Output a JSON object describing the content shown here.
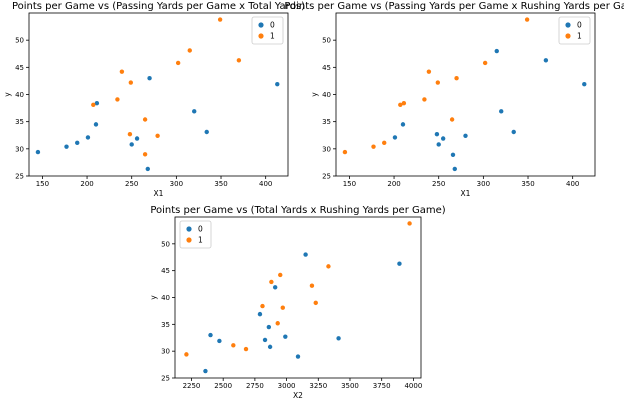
{
  "colors": {
    "class0": "#1f77b4",
    "class1": "#ff7f0e",
    "frame": "#000000",
    "legend_border": "#cccccc"
  },
  "chart_data": [
    {
      "type": "scatter",
      "title": "Points per Game vs (Passing Yards per Game x Total Yards)",
      "xlabel": "X1",
      "ylabel": "y",
      "xlim": [
        135,
        425
      ],
      "ylim": [
        25,
        55
      ],
      "xticks": [
        "150",
        "200",
        "250",
        "300",
        "350",
        "400"
      ],
      "yticks": [
        "25",
        "30",
        "35",
        "40",
        "45",
        "50"
      ],
      "grid": false,
      "legend": {
        "title": "",
        "placement": "top-right",
        "entries": [
          "0",
          "1"
        ]
      },
      "series": [
        {
          "name": "0",
          "points": [
            [
              145,
              29.4
            ],
            [
              177,
              30.4
            ],
            [
              189,
              31.1
            ],
            [
              201,
              32.1
            ],
            [
              210,
              34.5
            ],
            [
              211,
              38.4
            ],
            [
              250,
              30.8
            ],
            [
              256,
              31.9
            ],
            [
              268,
              26.3
            ],
            [
              270,
              43.0
            ],
            [
              320,
              36.9
            ],
            [
              334,
              33.1
            ],
            [
              413,
              41.9
            ]
          ]
        },
        {
          "name": "1",
          "points": [
            [
              207,
              38.1
            ],
            [
              234,
              39.1
            ],
            [
              239,
              44.2
            ],
            [
              248,
              32.7
            ],
            [
              249,
              42.2
            ],
            [
              265,
              35.4
            ],
            [
              265,
              29.0
            ],
            [
              279,
              32.4
            ],
            [
              302,
              45.8
            ],
            [
              315,
              48.1
            ],
            [
              349,
              53.8
            ],
            [
              370,
              46.3
            ]
          ]
        }
      ]
    },
    {
      "type": "scatter",
      "title": "Points per Game vs (Passing Yards per Game x Rushing Yards per Game)",
      "xlabel": "X1",
      "ylabel": "y",
      "xlim": [
        135,
        425
      ],
      "ylim": [
        25,
        55
      ],
      "xticks": [
        "150",
        "200",
        "250",
        "300",
        "350",
        "400"
      ],
      "yticks": [
        "25",
        "30",
        "35",
        "40",
        "45",
        "50"
      ],
      "grid": false,
      "legend": {
        "title": "",
        "placement": "top-right",
        "entries": [
          "0",
          "1"
        ]
      },
      "series": [
        {
          "name": "0",
          "points": [
            [
              201,
              32.1
            ],
            [
              210,
              34.5
            ],
            [
              248,
              32.7
            ],
            [
              250,
              30.8
            ],
            [
              255,
              31.9
            ],
            [
              266,
              28.9
            ],
            [
              268,
              26.3
            ],
            [
              280,
              32.4
            ],
            [
              315,
              48.0
            ],
            [
              320,
              36.9
            ],
            [
              334,
              33.1
            ],
            [
              370,
              46.3
            ],
            [
              413,
              41.9
            ]
          ]
        },
        {
          "name": "1",
          "points": [
            [
              145,
              29.4
            ],
            [
              177,
              30.4
            ],
            [
              189,
              31.1
            ],
            [
              207,
              38.1
            ],
            [
              211,
              38.4
            ],
            [
              234,
              39.1
            ],
            [
              239,
              44.2
            ],
            [
              249,
              42.2
            ],
            [
              265,
              35.4
            ],
            [
              270,
              43.0
            ],
            [
              302,
              45.8
            ],
            [
              349,
              53.8
            ]
          ]
        }
      ]
    },
    {
      "type": "scatter",
      "title": "Points per Game vs (Total Yards x Rushing Yards per Game)",
      "xlabel": "X2",
      "ylabel": "y",
      "xlim": [
        2120,
        4060
      ],
      "ylim": [
        25,
        55
      ],
      "xticks": [
        "2250",
        "2500",
        "2750",
        "3000",
        "3250",
        "3500",
        "3750",
        "4000"
      ],
      "yticks": [
        "25",
        "30",
        "35",
        "40",
        "45",
        "50"
      ],
      "grid": false,
      "legend": {
        "title": "",
        "placement": "top-left",
        "entries": [
          "0",
          "1"
        ]
      },
      "series": [
        {
          "name": "0",
          "points": [
            [
              2360,
              26.3
            ],
            [
              2400,
              33.0
            ],
            [
              2470,
              31.9
            ],
            [
              2790,
              36.9
            ],
            [
              2830,
              32.1
            ],
            [
              2860,
              34.5
            ],
            [
              2870,
              30.8
            ],
            [
              2910,
              41.9
            ],
            [
              2990,
              32.7
            ],
            [
              3090,
              29.0
            ],
            [
              3150,
              48.0
            ],
            [
              3410,
              32.4
            ],
            [
              3890,
              46.3
            ]
          ]
        },
        {
          "name": "1",
          "points": [
            [
              2210,
              29.4
            ],
            [
              2580,
              31.1
            ],
            [
              2680,
              30.4
            ],
            [
              2810,
              38.4
            ],
            [
              2880,
              42.9
            ],
            [
              2930,
              35.2
            ],
            [
              2950,
              44.2
            ],
            [
              2970,
              38.1
            ],
            [
              3200,
              42.2
            ],
            [
              3230,
              39.0
            ],
            [
              3330,
              45.8
            ],
            [
              3970,
              53.8
            ]
          ]
        }
      ]
    }
  ]
}
